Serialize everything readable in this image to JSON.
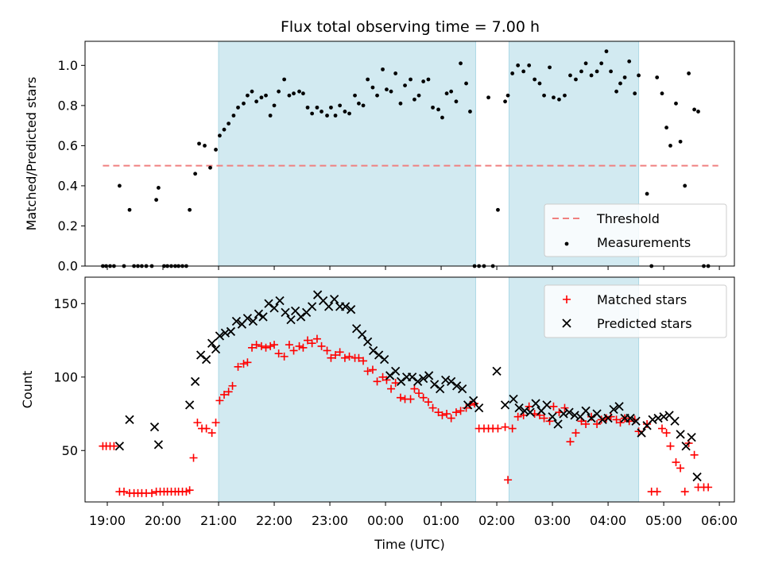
{
  "figure": {
    "title": "Flux total observing time = 7.00 h"
  },
  "chart_data": [
    {
      "type": "scatter",
      "title": "Flux total observing time = 7.00 h",
      "xlabel": "",
      "ylabel": "Matched/Predicted stars",
      "xlim": [
        18.6,
        30.27
      ],
      "ylim": [
        0.0,
        1.12
      ],
      "yticks": [
        0.0,
        0.2,
        0.4,
        0.6,
        0.8,
        1.0
      ],
      "ytick_labels": [
        "0.0",
        "0.2",
        "0.4",
        "0.6",
        "0.8",
        "1.0"
      ],
      "shaded_intervals": [
        [
          21.0,
          25.62
        ],
        [
          26.22,
          28.55
        ]
      ],
      "shade_color": "#add8e6",
      "legend_position": "lower right",
      "series": [
        {
          "name": "Threshold",
          "style": "dashed-line",
          "color": "#f08080",
          "x": [
            18.92,
            29.98
          ],
          "y": [
            0.5,
            0.5
          ]
        },
        {
          "name": "Measurements",
          "style": "dot",
          "color": "#000000",
          "x": [
            18.92,
            18.98,
            19.05,
            19.12,
            19.22,
            19.3,
            19.4,
            19.48,
            19.55,
            19.62,
            19.7,
            19.8,
            19.88,
            19.92,
            20.02,
            20.08,
            20.15,
            20.22,
            20.28,
            20.35,
            20.42,
            20.48,
            20.58,
            20.65,
            20.75,
            20.85,
            20.95,
            21.02,
            21.1,
            21.18,
            21.27,
            21.35,
            21.45,
            21.52,
            21.6,
            21.68,
            21.77,
            21.85,
            21.93,
            22.0,
            22.08,
            22.18,
            22.27,
            22.35,
            22.45,
            22.52,
            22.6,
            22.68,
            22.77,
            22.85,
            22.95,
            23.02,
            23.1,
            23.18,
            23.27,
            23.35,
            23.45,
            23.52,
            23.6,
            23.68,
            23.77,
            23.85,
            23.95,
            24.02,
            24.1,
            24.18,
            24.27,
            24.35,
            24.45,
            24.52,
            24.6,
            24.68,
            24.77,
            24.85,
            24.95,
            25.02,
            25.1,
            25.18,
            25.27,
            25.35,
            25.45,
            25.52,
            25.6,
            25.68,
            25.77,
            25.85,
            25.93,
            26.02,
            26.15,
            26.2,
            26.28,
            26.38,
            26.48,
            26.58,
            26.68,
            26.77,
            26.85,
            26.95,
            27.02,
            27.12,
            27.22,
            27.32,
            27.42,
            27.52,
            27.6,
            27.7,
            27.8,
            27.88,
            27.97,
            28.05,
            28.15,
            28.22,
            28.3,
            28.38,
            28.48,
            28.55,
            28.7,
            28.78,
            28.88,
            28.97,
            29.05,
            29.12,
            29.22,
            29.3,
            29.38,
            29.45,
            29.55,
            29.62,
            29.72,
            29.8
          ],
          "y": [
            0.0,
            0.0,
            0.0,
            0.0,
            0.4,
            0.0,
            0.28,
            0.0,
            0.0,
            0.0,
            0.0,
            0.0,
            0.33,
            0.39,
            0.0,
            0.0,
            0.0,
            0.0,
            0.0,
            0.0,
            0.0,
            0.28,
            0.46,
            0.61,
            0.6,
            0.49,
            0.58,
            0.65,
            0.68,
            0.71,
            0.75,
            0.79,
            0.81,
            0.85,
            0.87,
            0.82,
            0.84,
            0.85,
            0.75,
            0.8,
            0.87,
            0.93,
            0.85,
            0.86,
            0.87,
            0.86,
            0.79,
            0.76,
            0.79,
            0.77,
            0.75,
            0.79,
            0.75,
            0.8,
            0.77,
            0.76,
            0.85,
            0.81,
            0.8,
            0.93,
            0.89,
            0.85,
            0.98,
            0.88,
            0.87,
            0.96,
            0.81,
            0.9,
            0.93,
            0.83,
            0.85,
            0.92,
            0.93,
            0.79,
            0.78,
            0.74,
            0.86,
            0.87,
            0.82,
            1.01,
            0.91,
            0.77,
            0.0,
            0.0,
            0.0,
            0.84,
            0.0,
            0.28,
            0.82,
            0.85,
            0.96,
            1.0,
            0.97,
            1.0,
            0.93,
            0.91,
            0.85,
            0.99,
            0.84,
            0.83,
            0.85,
            0.95,
            0.93,
            0.97,
            1.01,
            0.95,
            0.97,
            1.01,
            1.07,
            0.97,
            0.87,
            0.91,
            0.94,
            1.02,
            0.86,
            0.95,
            0.36,
            0.0,
            0.94,
            0.86,
            0.69,
            0.6,
            0.81,
            0.62,
            0.4,
            0.96,
            0.78,
            0.77,
            0.0,
            0.0
          ]
        }
      ]
    },
    {
      "type": "scatter",
      "title": "",
      "xlabel": "Time (UTC)",
      "ylabel": "Count",
      "xlim": [
        18.6,
        30.27
      ],
      "ylim": [
        15,
        168
      ],
      "yticks": [
        50,
        100,
        150
      ],
      "ytick_labels": [
        "50",
        "100",
        "150"
      ],
      "xticks": [
        19,
        20,
        21,
        22,
        23,
        24,
        25,
        26,
        27,
        28,
        29,
        30
      ],
      "xtick_labels": [
        "19:00",
        "20:00",
        "21:00",
        "22:00",
        "23:00",
        "00:00",
        "01:00",
        "02:00",
        "03:00",
        "04:00",
        "05:00",
        "06:00"
      ],
      "shaded_intervals": [
        [
          21.0,
          25.62
        ],
        [
          26.22,
          28.55
        ]
      ],
      "shade_color": "#add8e6",
      "legend_position": "upper right",
      "series": [
        {
          "name": "Matched stars",
          "style": "plus",
          "color": "#ff0000",
          "x": [
            18.92,
            18.98,
            19.05,
            19.12,
            19.22,
            19.3,
            19.4,
            19.48,
            19.55,
            19.62,
            19.7,
            19.8,
            19.88,
            19.95,
            20.02,
            20.08,
            20.15,
            20.22,
            20.28,
            20.35,
            20.42,
            20.48,
            20.55,
            20.62,
            20.7,
            20.78,
            20.88,
            20.95,
            21.02,
            21.1,
            21.18,
            21.25,
            21.35,
            21.45,
            21.52,
            21.6,
            21.68,
            21.77,
            21.85,
            21.93,
            22.0,
            22.08,
            22.18,
            22.27,
            22.35,
            22.45,
            22.52,
            22.6,
            22.68,
            22.77,
            22.85,
            22.95,
            23.02,
            23.1,
            23.18,
            23.27,
            23.35,
            23.45,
            23.52,
            23.6,
            23.68,
            23.77,
            23.85,
            23.95,
            24.02,
            24.1,
            24.18,
            24.27,
            24.35,
            24.45,
            24.52,
            24.6,
            24.68,
            24.77,
            24.85,
            24.95,
            25.02,
            25.1,
            25.18,
            25.27,
            25.35,
            25.45,
            25.52,
            25.6,
            25.68,
            25.77,
            25.85,
            25.93,
            26.02,
            26.15,
            26.2,
            26.28,
            26.38,
            26.48,
            26.58,
            26.68,
            26.77,
            26.85,
            26.95,
            27.02,
            27.12,
            27.22,
            27.32,
            27.42,
            27.52,
            27.6,
            27.7,
            27.8,
            27.88,
            27.97,
            28.05,
            28.15,
            28.22,
            28.3,
            28.38,
            28.48,
            28.55,
            28.7,
            28.78,
            28.88,
            28.97,
            29.05,
            29.12,
            29.22,
            29.3,
            29.38,
            29.45,
            29.55,
            29.62,
            29.72,
            29.8
          ],
          "y": [
            53,
            53,
            53,
            53,
            22,
            22,
            21,
            21,
            21,
            21,
            21,
            21,
            22,
            22,
            22,
            22,
            22,
            22,
            22,
            22,
            22,
            23,
            45,
            69,
            65,
            65,
            62,
            69,
            84,
            88,
            90,
            94,
            107,
            109,
            110,
            120,
            122,
            121,
            120,
            121,
            122,
            116,
            114,
            122,
            118,
            121,
            120,
            125,
            123,
            126,
            121,
            118,
            113,
            115,
            117,
            113,
            114,
            113,
            113,
            111,
            104,
            105,
            97,
            100,
            98,
            92,
            96,
            86,
            85,
            85,
            92,
            89,
            86,
            83,
            79,
            76,
            74,
            75,
            72,
            76,
            77,
            79,
            81,
            82,
            65,
            65,
            65,
            65,
            65,
            66,
            30,
            65,
            73,
            74,
            80,
            75,
            74,
            72,
            70,
            80,
            76,
            79,
            56,
            62,
            70,
            68,
            73,
            68,
            71,
            72,
            73,
            71,
            69,
            72,
            70,
            71,
            63,
            68,
            22,
            22,
            65,
            62,
            53,
            42,
            38,
            22,
            55,
            47,
            25,
            25,
            25
          ],
          "x_extra_note": ""
        },
        {
          "name": "Predicted stars",
          "style": "cross",
          "color": "#000000",
          "x": [
            19.22,
            19.4,
            19.85,
            19.92,
            20.48,
            20.58,
            20.68,
            20.78,
            20.88,
            20.95,
            21.02,
            21.12,
            21.22,
            21.32,
            21.42,
            21.52,
            21.62,
            21.72,
            21.8,
            21.9,
            22.0,
            22.1,
            22.2,
            22.3,
            22.38,
            22.48,
            22.58,
            22.68,
            22.78,
            22.88,
            22.98,
            23.08,
            23.18,
            23.28,
            23.38,
            23.48,
            23.58,
            23.68,
            23.78,
            23.88,
            23.98,
            24.08,
            24.18,
            24.28,
            24.38,
            24.48,
            24.58,
            24.68,
            24.78,
            24.88,
            24.98,
            25.08,
            25.18,
            25.28,
            25.38,
            25.48,
            25.58,
            25.68,
            26.0,
            26.15,
            26.3,
            26.4,
            26.5,
            26.6,
            26.7,
            26.8,
            26.9,
            27.0,
            27.1,
            27.2,
            27.3,
            27.4,
            27.5,
            27.6,
            27.7,
            27.8,
            27.9,
            28.0,
            28.1,
            28.2,
            28.3,
            28.4,
            28.5,
            28.6,
            28.7,
            28.8,
            28.9,
            29.0,
            29.1,
            29.2,
            29.3,
            29.4,
            29.5,
            29.6
          ],
          "y": [
            53,
            71,
            66,
            54,
            81,
            97,
            115,
            112,
            123,
            119,
            128,
            130,
            131,
            138,
            136,
            140,
            138,
            143,
            141,
            150,
            147,
            152,
            144,
            139,
            145,
            141,
            144,
            148,
            156,
            152,
            148,
            153,
            148,
            148,
            146,
            133,
            129,
            124,
            118,
            115,
            112,
            101,
            104,
            97,
            100,
            100,
            97,
            99,
            101,
            95,
            92,
            98,
            97,
            94,
            92,
            81,
            84,
            79,
            104,
            81,
            85,
            79,
            77,
            76,
            82,
            77,
            81,
            73,
            68,
            75,
            76,
            74,
            73,
            77,
            72,
            75,
            71,
            72,
            78,
            80,
            72,
            72,
            70,
            62,
            67,
            71,
            72,
            73,
            74,
            70,
            61,
            53,
            59,
            32
          ]
        }
      ]
    }
  ]
}
